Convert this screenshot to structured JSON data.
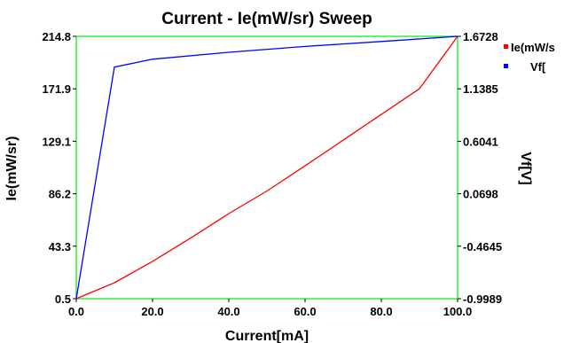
{
  "chart_data": {
    "type": "line",
    "title": "Current - Ie(mW/sr) Sweep",
    "xlabel": "Current[mA]",
    "ylabel": "Ie(mW/sr)",
    "ylabel_right": "Vf[V]",
    "xlim": [
      0,
      100
    ],
    "ylim": [
      0.5,
      214.8
    ],
    "ylim_right": [
      -0.9989,
      1.6728
    ],
    "x_ticks": [
      "0.0",
      "20.0",
      "40.0",
      "60.0",
      "80.0",
      "100.0"
    ],
    "y_ticks": [
      "0.5",
      "43.3",
      "86.2",
      "129.1",
      "171.9",
      "214.8"
    ],
    "y_ticks_right": [
      "-0.9989",
      "-0.4645",
      "0.0698",
      "0.6041",
      "1.1385",
      "1.6728"
    ],
    "grid": false,
    "legend": "top-right",
    "series": [
      {
        "name": "Ie(mW/s",
        "axis": "left",
        "color": "#ff0000",
        "x": [
          0,
          10,
          20,
          30,
          40,
          50,
          60,
          70,
          80,
          90,
          100
        ],
        "y": [
          0.5,
          13.5,
          31.0,
          50.0,
          70.0,
          88.5,
          109.0,
          130.0,
          151.0,
          172.0,
          214.8
        ]
      },
      {
        "name": "Vf[",
        "axis": "right",
        "color": "#0000ff",
        "x": [
          0,
          10,
          20,
          40,
          60,
          80,
          100
        ],
        "y": [
          -0.9989,
          1.36,
          1.44,
          1.51,
          1.57,
          1.62,
          1.6728
        ]
      }
    ]
  }
}
